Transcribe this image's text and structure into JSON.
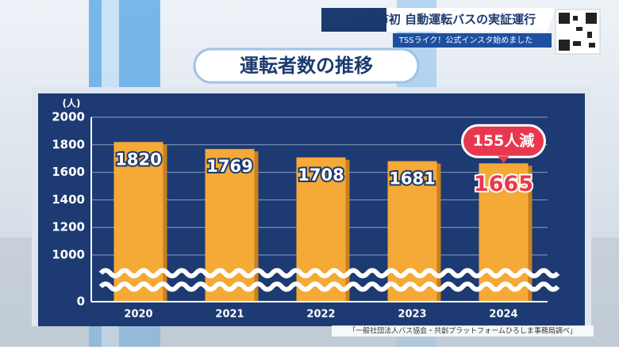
{
  "header": {
    "title": "広島市初 自動運転バスの実証運行",
    "ticker": "TSSライク！公式インスタ始めました"
  },
  "chart_data": {
    "type": "bar",
    "title": "運転者数の推移",
    "y_unit": "(人)",
    "categories": [
      "2020",
      "2021",
      "2022",
      "2023",
      "2024"
    ],
    "values": [
      1820,
      1769,
      1708,
      1681,
      1665
    ],
    "color": "#f5a937",
    "highlight_color": "#e8384f",
    "ylim": [
      0,
      2000
    ],
    "axis_break": [
      0,
      1000
    ],
    "yticks": [
      0,
      1000,
      1200,
      1400,
      1600,
      1800,
      2000
    ],
    "grid": true,
    "annotation": "155人減",
    "source": "「一般社団法人バス協会・共創プラットフォームひろしま事務局調べ」"
  }
}
